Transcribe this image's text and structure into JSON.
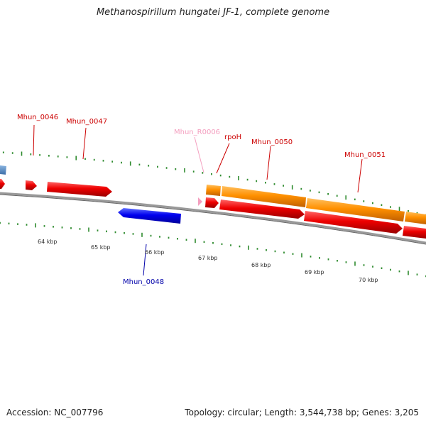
{
  "title": "Methanospirillum hungatei JF-1, complete genome",
  "footer": {
    "accession": "Accession: NC_007796",
    "summary": "Topology: circular; Length: 3,544,738 bp; Genes: 3,205"
  },
  "kbp_labels": [
    "64 kbp",
    "65 kbp",
    "66 kbp",
    "67 kbp",
    "68 kbp",
    "69 kbp",
    "70 kbp"
  ],
  "gene_labels": [
    {
      "text": "Mhun_0046",
      "color": "#cc0000"
    },
    {
      "text": "Mhun_0047",
      "color": "#cc0000"
    },
    {
      "text": "Mhun_R0006",
      "color": "#f4a0c0"
    },
    {
      "text": "rpoH",
      "color": "#cc0000"
    },
    {
      "text": "Mhun_0050",
      "color": "#cc0000"
    },
    {
      "text": "Mhun_0051",
      "color": "#cc0000"
    },
    {
      "text": "Mhun_0048",
      "color": "#0000aa"
    }
  ],
  "colors": {
    "backbone": "#888888",
    "forward_cds": "#ff0000",
    "reverse_cds": "#0000ff",
    "gene_feature": "#ff8c00",
    "rna_feature": "#f4a0c0",
    "partial_feature": "#5b8fc7",
    "tick": "#2e8b2e"
  }
}
